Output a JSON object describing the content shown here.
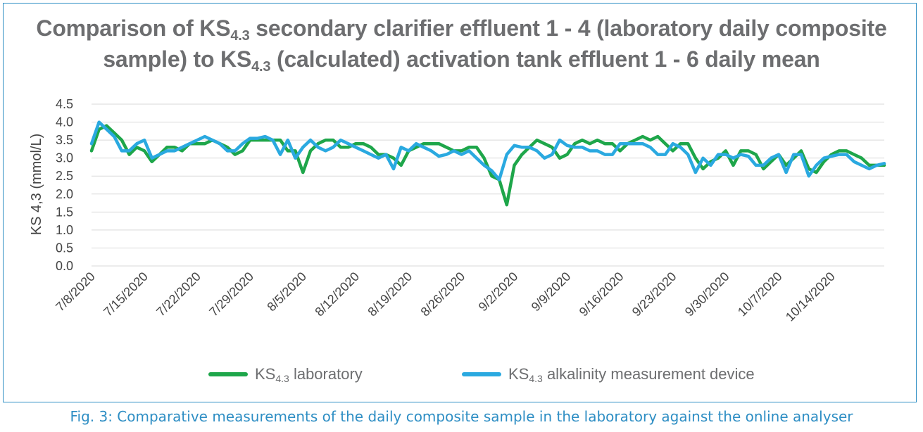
{
  "title": {
    "line1_a": "Comparison of KS",
    "line1_sub": "4.3",
    "line1_b": " secondary clarifier effluent 1 - 4 (laboratory daily composite",
    "line2_a": "sample) to KS",
    "line2_sub": "4.3",
    "line2_b": " (calculated) activation tank effluent 1 - 6 daily mean"
  },
  "caption": "Fig. 3: Comparative measurements of the daily composite sample in the laboratory against the online analyser",
  "legend": [
    {
      "main": "KS",
      "sub": "4.3",
      "rest": " laboratory",
      "color": "#1ea64a"
    },
    {
      "main": "KS",
      "sub": "4.3",
      "rest": " alkalinity measurement device",
      "color": "#2aa9e0"
    }
  ],
  "chart_data": {
    "type": "line",
    "ylabel": "KS 4,3 (mmol/L)",
    "xlabel": "",
    "ylim": [
      0.0,
      4.5
    ],
    "yticks": [
      "0.0",
      "0.5",
      "1.0",
      "1.5",
      "2.0",
      "2.5",
      "3.0",
      "3.5",
      "4.0",
      "4.5"
    ],
    "grid": true,
    "legend_position": "bottom",
    "x_start": "7/8/2020",
    "x_tick_labels": [
      "7/8/2020",
      "7/15/2020",
      "7/22/2020",
      "7/29/2020",
      "8/5/2020",
      "8/12/2020",
      "8/19/2020",
      "8/26/2020",
      "9/2/2020",
      "9/9/2020",
      "9/16/2020",
      "9/23/2020",
      "9/30/2020",
      "10/7/2020",
      "10/14/2020"
    ],
    "series": [
      {
        "name": "KS4.3 laboratory",
        "color": "#1ea64a",
        "values": [
          3.2,
          3.8,
          3.9,
          3.7,
          3.5,
          3.1,
          3.3,
          3.2,
          2.9,
          3.1,
          3.3,
          3.3,
          3.2,
          3.4,
          3.4,
          3.4,
          3.5,
          3.4,
          3.3,
          3.1,
          3.2,
          3.5,
          3.5,
          3.5,
          3.5,
          3.5,
          3.2,
          3.2,
          2.6,
          3.2,
          3.4,
          3.5,
          3.5,
          3.3,
          3.3,
          3.4,
          3.4,
          3.3,
          3.1,
          3.1,
          3.0,
          2.8,
          3.2,
          3.3,
          3.4,
          3.4,
          3.4,
          3.3,
          3.2,
          3.2,
          3.3,
          3.3,
          3.0,
          2.5,
          2.4,
          1.7,
          2.8,
          3.1,
          3.3,
          3.5,
          3.4,
          3.3,
          3.0,
          3.1,
          3.4,
          3.5,
          3.4,
          3.5,
          3.4,
          3.4,
          3.2,
          3.4,
          3.5,
          3.6,
          3.5,
          3.6,
          3.4,
          3.2,
          3.4,
          3.4,
          3.0,
          2.7,
          2.9,
          3.0,
          3.2,
          2.8,
          3.2,
          3.2,
          3.1,
          2.7,
          2.9,
          3.1,
          2.8,
          3.0,
          3.2,
          2.7,
          2.6,
          2.9,
          3.1,
          3.2,
          3.2,
          3.1,
          3.0,
          2.8,
          2.8,
          2.8
        ]
      },
      {
        "name": "KS4.3 alkalinity measurement device",
        "color": "#2aa9e0",
        "values": [
          3.4,
          4.0,
          3.8,
          3.6,
          3.2,
          3.2,
          3.4,
          3.5,
          3.0,
          3.1,
          3.2,
          3.2,
          3.3,
          3.4,
          3.5,
          3.6,
          3.5,
          3.4,
          3.2,
          3.2,
          3.4,
          3.55,
          3.55,
          3.6,
          3.5,
          3.1,
          3.5,
          3.0,
          3.3,
          3.5,
          3.3,
          3.2,
          3.3,
          3.5,
          3.4,
          3.3,
          3.2,
          3.1,
          3.0,
          3.1,
          2.7,
          3.3,
          3.2,
          3.4,
          3.3,
          3.2,
          3.05,
          3.1,
          3.2,
          3.1,
          3.2,
          3.0,
          2.8,
          2.65,
          2.4,
          3.1,
          3.35,
          3.3,
          3.3,
          3.2,
          3.0,
          3.1,
          3.5,
          3.35,
          3.3,
          3.3,
          3.2,
          3.2,
          3.1,
          3.1,
          3.4,
          3.4,
          3.4,
          3.4,
          3.3,
          3.1,
          3.1,
          3.4,
          3.3,
          3.1,
          2.6,
          3.0,
          2.8,
          3.1,
          3.1,
          3.0,
          3.1,
          3.05,
          2.8,
          2.8,
          3.0,
          3.1,
          2.6,
          3.1,
          3.1,
          2.5,
          2.8,
          3.0,
          3.05,
          3.1,
          3.1,
          2.9,
          2.8,
          2.7,
          2.8,
          2.85
        ]
      }
    ]
  }
}
